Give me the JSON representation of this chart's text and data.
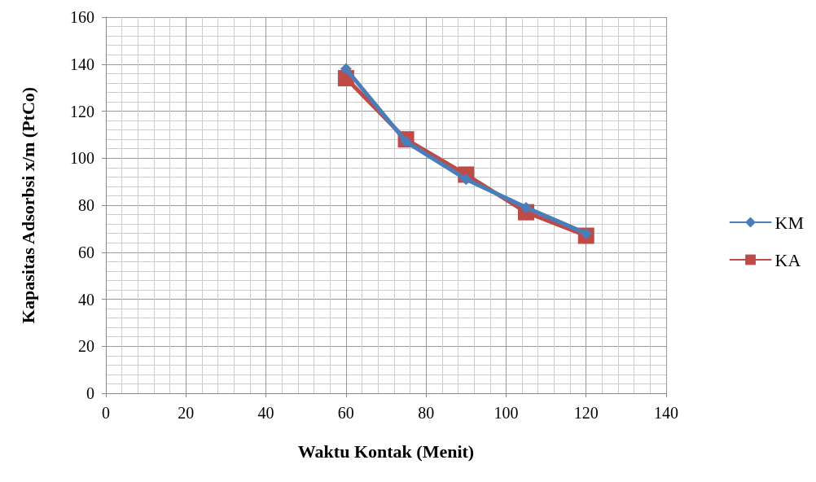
{
  "chart_data": {
    "type": "line",
    "xlabel": "Waktu Kontak (Menit)",
    "ylabel": "Kapasitas Adsorbsi x/m (PtCo)",
    "x": [
      60,
      75,
      90,
      105,
      120
    ],
    "series": [
      {
        "name": "KM",
        "color": "#4a7ebb",
        "marker": "diamond",
        "values": [
          138,
          107,
          91,
          79,
          68
        ]
      },
      {
        "name": "KA",
        "color": "#be4b48",
        "marker": "square",
        "values": [
          134,
          108,
          93,
          77,
          67
        ]
      }
    ],
    "xlim": [
      0,
      140
    ],
    "xticks": [
      0,
      20,
      40,
      60,
      80,
      100,
      120,
      140
    ],
    "ylim": [
      0,
      160
    ],
    "yticks": [
      0,
      20,
      40,
      60,
      80,
      100,
      120,
      140,
      160
    ],
    "grid": true,
    "legend": "right"
  }
}
